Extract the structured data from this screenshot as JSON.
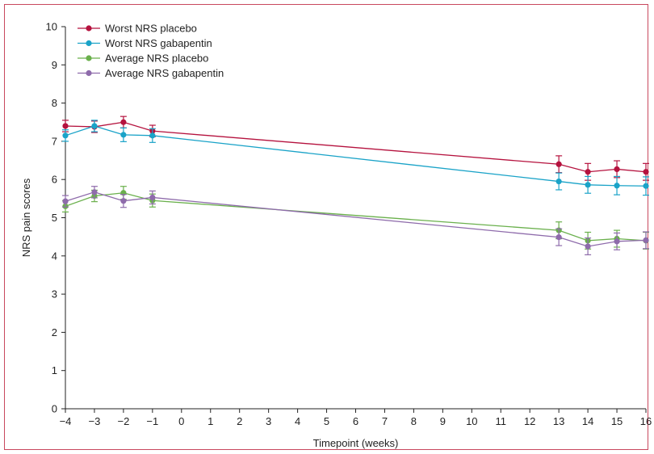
{
  "chart_data": {
    "type": "line",
    "xlabel": "Timepoint (weeks)",
    "ylabel": "NRS pain scores",
    "x_ticks": [
      -4,
      -3,
      -2,
      -1,
      0,
      1,
      2,
      3,
      4,
      5,
      6,
      7,
      8,
      9,
      10,
      11,
      12,
      13,
      14,
      15,
      16
    ],
    "x_tick_labels": [
      "−4",
      "−3",
      "−2",
      "−1",
      "0",
      "1",
      "2",
      "3",
      "4",
      "5",
      "6",
      "7",
      "8",
      "9",
      "10",
      "11",
      "12",
      "13",
      "14",
      "15",
      "16"
    ],
    "y_ticks": [
      0,
      1,
      2,
      3,
      4,
      5,
      6,
      7,
      8,
      9,
      10
    ],
    "y_tick_labels": [
      "0",
      "1",
      "2",
      "3",
      "4",
      "5",
      "6",
      "7",
      "8",
      "9",
      "10"
    ],
    "xlim": [
      -4,
      16
    ],
    "ylim": [
      0,
      10
    ],
    "grid": false,
    "legend_position": "top-left",
    "series": [
      {
        "name": "Worst NRS placebo",
        "color": "#b5123e",
        "x": [
          -4,
          -3,
          -2,
          -1,
          13,
          14,
          15,
          16
        ],
        "y": [
          7.4,
          7.38,
          7.5,
          7.27,
          6.4,
          6.2,
          6.27,
          6.2
        ],
        "err": [
          0.15,
          0.15,
          0.15,
          0.15,
          0.22,
          0.22,
          0.22,
          0.22
        ]
      },
      {
        "name": "Worst NRS gabapentin",
        "color": "#1aa3c8",
        "x": [
          -4,
          -3,
          -2,
          -1,
          13,
          14,
          15,
          16
        ],
        "y": [
          7.15,
          7.4,
          7.17,
          7.15,
          5.95,
          5.86,
          5.84,
          5.83
        ],
        "err": [
          0.15,
          0.15,
          0.18,
          0.18,
          0.22,
          0.22,
          0.24,
          0.24
        ]
      },
      {
        "name": "Average NRS placebo",
        "color": "#6ab04c",
        "x": [
          -4,
          -3,
          -2,
          -1,
          13,
          14,
          15,
          16
        ],
        "y": [
          5.3,
          5.57,
          5.65,
          5.45,
          4.67,
          4.4,
          4.45,
          4.4
        ],
        "err": [
          0.15,
          0.15,
          0.17,
          0.17,
          0.22,
          0.22,
          0.22,
          0.22
        ]
      },
      {
        "name": "Average NRS gabapentin",
        "color": "#8e6bab",
        "x": [
          -4,
          -3,
          -2,
          -1,
          13,
          14,
          15,
          16
        ],
        "y": [
          5.43,
          5.67,
          5.44,
          5.53,
          4.49,
          4.25,
          4.38,
          4.41
        ],
        "err": [
          0.15,
          0.15,
          0.17,
          0.17,
          0.22,
          0.22,
          0.22,
          0.22
        ]
      }
    ]
  }
}
